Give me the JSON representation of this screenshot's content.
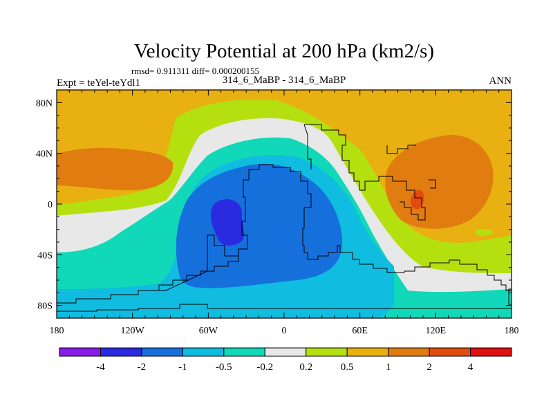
{
  "chart_data": {
    "type": "heatmap",
    "title": "Velocity Potential at 200 hPa (km2/s)",
    "stats_line": "rmsd= 0.911311 diff= 0.000200155",
    "left_label": "Expt = teYel-teYdl1",
    "center_label": "314_6_MaBP - 314_6_MaBP",
    "right_label": "ANN",
    "x_ticks": [
      {
        "value": -180,
        "label": "180"
      },
      {
        "value": -120,
        "label": "120W"
      },
      {
        "value": -60,
        "label": "60W"
      },
      {
        "value": 0,
        "label": "0"
      },
      {
        "value": 60,
        "label": "60E"
      },
      {
        "value": 120,
        "label": "120E"
      },
      {
        "value": 180,
        "label": "180"
      }
    ],
    "y_ticks": [
      {
        "value": 80,
        "label": "80N"
      },
      {
        "value": 40,
        "label": "40N"
      },
      {
        "value": 0,
        "label": "0"
      },
      {
        "value": -40,
        "label": "40S"
      },
      {
        "value": -80,
        "label": "80S"
      }
    ],
    "xlim": [
      -180,
      180
    ],
    "ylim": [
      -90,
      90
    ],
    "levels": [
      "-4",
      "-2",
      "-1",
      "-0.5",
      "-0.2",
      "0.2",
      "0.5",
      "1",
      "2",
      "4"
    ],
    "colors": [
      "#8a1ae8",
      "#2a2ae0",
      "#1570dc",
      "#10bce0",
      "#10d8b8",
      "#e8e8e8",
      "#b4e010",
      "#e8b010",
      "#e07c10",
      "#e04c10",
      "#e01010"
    ]
  }
}
